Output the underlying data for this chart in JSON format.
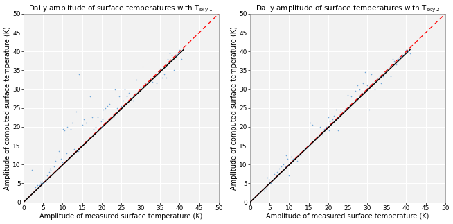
{
  "title1": "Daily amplitude of surface temperatures with T",
  "title1_sub": "sky 1",
  "title2": "Daily amplitude of surface temperatures with T",
  "title2_sub": "sky 2",
  "xlabel": "Amplitude of measured surface temperature (K)",
  "ylabel": "Amplitude of computed surface temperature (K)",
  "xlim": [
    0,
    50
  ],
  "ylim": [
    0,
    50
  ],
  "xticks": [
    0,
    5,
    10,
    15,
    20,
    25,
    30,
    35,
    40,
    45,
    50
  ],
  "yticks": [
    0,
    5,
    10,
    15,
    20,
    25,
    30,
    35,
    40,
    45,
    50
  ],
  "scatter_color": "#5B9BD5",
  "line_color": "#000000",
  "diag_color": "#FF0000",
  "bg_color": "#F2F2F2",
  "scatter1_x": [
    2.2,
    3.0,
    3.5,
    4.0,
    4.2,
    4.5,
    4.8,
    5.0,
    5.2,
    5.5,
    5.8,
    6.0,
    6.2,
    6.5,
    6.8,
    7.0,
    7.5,
    7.8,
    8.2,
    8.5,
    9.0,
    9.5,
    10.0,
    10.2,
    10.5,
    11.0,
    11.2,
    11.5,
    12.0,
    12.5,
    13.0,
    13.5,
    14.0,
    14.2,
    15.0,
    15.5,
    16.0,
    17.0,
    17.5,
    18.0,
    18.5,
    19.0,
    19.5,
    19.8,
    20.0,
    20.3,
    20.5,
    21.0,
    21.5,
    22.0,
    22.5,
    23.0,
    23.5,
    24.0,
    24.5,
    25.0,
    25.5,
    26.0,
    26.5,
    27.0,
    28.0,
    29.0,
    30.0,
    30.5,
    31.0,
    33.0,
    34.0,
    35.0,
    35.5,
    36.0,
    36.5,
    37.0,
    37.5,
    38.0,
    38.5,
    39.0,
    39.5,
    40.0,
    40.5
  ],
  "scatter1_y": [
    8.5,
    4.0,
    4.5,
    4.5,
    5.5,
    5.0,
    5.5,
    5.0,
    6.5,
    6.0,
    5.5,
    7.0,
    6.5,
    8.0,
    9.0,
    8.5,
    9.0,
    9.5,
    11.0,
    12.0,
    13.5,
    11.5,
    10.5,
    19.5,
    19.0,
    13.0,
    20.0,
    18.0,
    19.5,
    21.0,
    14.0,
    24.0,
    13.5,
    34.0,
    20.5,
    22.0,
    21.0,
    28.0,
    22.5,
    19.5,
    20.0,
    22.5,
    23.5,
    21.5,
    20.0,
    22.0,
    24.5,
    25.0,
    25.5,
    26.0,
    27.0,
    22.5,
    30.0,
    25.0,
    28.0,
    25.5,
    27.0,
    30.0,
    28.0,
    29.0,
    27.0,
    32.5,
    30.5,
    36.0,
    31.5,
    32.0,
    31.5,
    35.5,
    33.0,
    34.0,
    33.0,
    38.0,
    39.5,
    39.0,
    35.0,
    39.0,
    39.5,
    40.5,
    38.0
  ],
  "scatter2_x": [
    3.5,
    4.0,
    4.5,
    5.0,
    5.0,
    5.3,
    5.5,
    6.0,
    6.0,
    6.3,
    6.5,
    7.0,
    7.5,
    7.8,
    8.0,
    8.5,
    9.0,
    9.2,
    9.5,
    10.0,
    10.5,
    11.0,
    12.0,
    13.0,
    14.0,
    14.5,
    15.0,
    15.5,
    16.0,
    17.0,
    18.0,
    18.5,
    19.0,
    19.5,
    20.0,
    20.2,
    20.5,
    21.0,
    21.2,
    21.5,
    22.0,
    22.5,
    23.0,
    24.0,
    24.5,
    25.0,
    25.5,
    26.0,
    27.0,
    27.5,
    28.0,
    28.5,
    29.0,
    29.5,
    30.0,
    30.5,
    31.0,
    32.0,
    33.0,
    33.5,
    34.0,
    35.0,
    35.5,
    36.0,
    36.5,
    37.0,
    37.5,
    38.0,
    38.5,
    39.0,
    39.5,
    40.0,
    40.5,
    41.0
  ],
  "scatter2_y": [
    3.0,
    3.5,
    6.5,
    6.0,
    5.5,
    5.0,
    6.0,
    6.5,
    3.5,
    7.5,
    5.5,
    8.0,
    9.0,
    6.5,
    9.5,
    10.0,
    9.5,
    12.5,
    11.5,
    7.0,
    12.0,
    11.5,
    11.0,
    12.5,
    14.0,
    14.5,
    15.0,
    21.0,
    20.5,
    21.0,
    20.0,
    18.0,
    19.5,
    20.0,
    22.5,
    19.0,
    21.5,
    23.5,
    22.0,
    23.0,
    24.5,
    19.0,
    24.0,
    24.5,
    25.0,
    28.5,
    25.0,
    28.0,
    29.5,
    31.0,
    30.0,
    29.0,
    31.5,
    34.5,
    31.0,
    24.5,
    34.0,
    30.0,
    33.0,
    31.5,
    33.5,
    35.5,
    36.0,
    33.5,
    38.0,
    37.5,
    36.5,
    38.0,
    38.5,
    39.0,
    39.5,
    40.5,
    40.0,
    39.5
  ],
  "fit1_x": [
    0,
    41
  ],
  "fit1_y": [
    0,
    40.5
  ],
  "fit2_x": [
    0,
    41
  ],
  "fit2_y": [
    0,
    40.5
  ],
  "title_fontsize": 7.5,
  "axis_fontsize": 7.0,
  "tick_fontsize": 6.5
}
